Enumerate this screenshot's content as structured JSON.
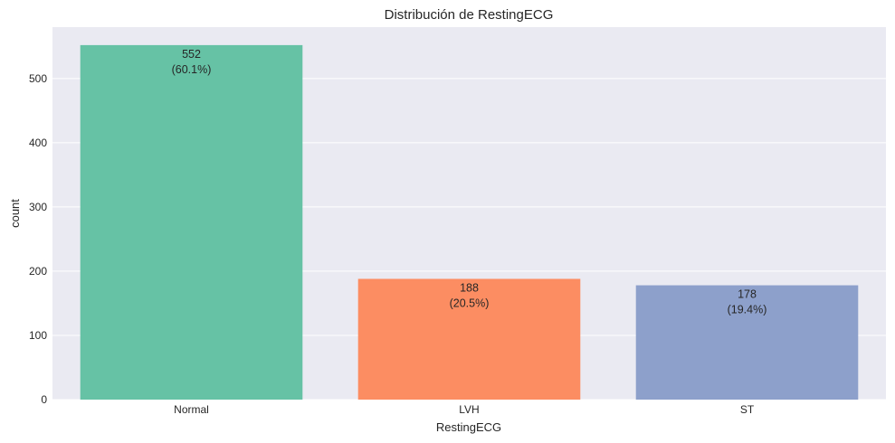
{
  "chart_data": {
    "type": "bar",
    "title": "Distribución de RestingECG",
    "xlabel": "RestingECG",
    "ylabel": "count",
    "categories": [
      "Normal",
      "LVH",
      "ST"
    ],
    "values": [
      552,
      188,
      178
    ],
    "percent_labels": [
      "(60.1%)",
      "(20.5%)",
      "(19.4%)"
    ],
    "ylim": [
      0,
      580
    ],
    "yticks": [
      0,
      100,
      200,
      300,
      400,
      500
    ],
    "grid": true,
    "legend": "none",
    "colors": [
      "#66c2a5",
      "#fc8d62",
      "#8da0cb"
    ],
    "background": "#eaeaf2"
  }
}
